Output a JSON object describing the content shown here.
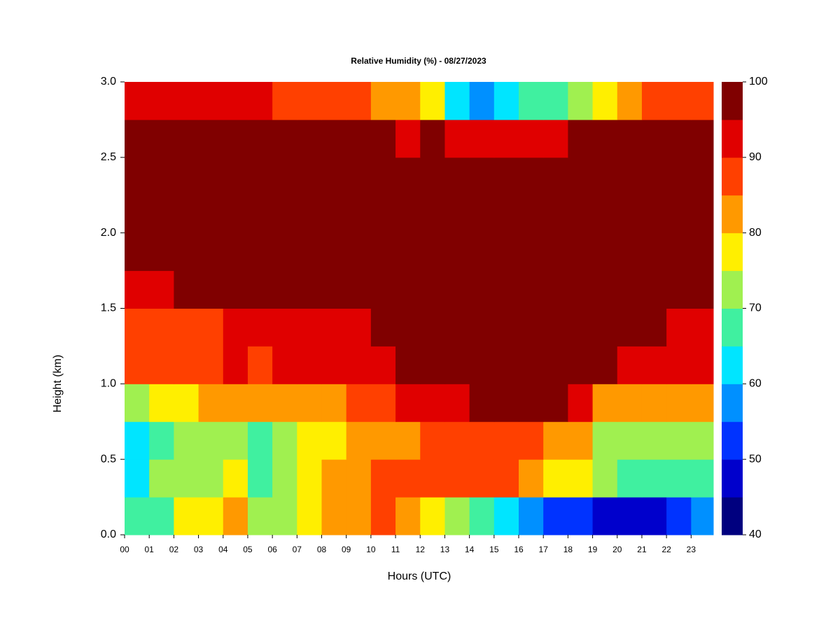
{
  "chart_data": {
    "type": "heatmap",
    "title": "Relative Humidity (%) - 08/27/2023",
    "xlabel": "Hours (UTC)",
    "ylabel": "Height (km)",
    "xlim": [
      0,
      23.9
    ],
    "ylim": [
      0,
      3
    ],
    "x": [
      0,
      1,
      2,
      3,
      4,
      5,
      6,
      7,
      8,
      9,
      10,
      11,
      12,
      13,
      14,
      15,
      16,
      17,
      18,
      19,
      20,
      21,
      22,
      23
    ],
    "y": [
      0,
      0.25,
      0.5,
      0.75,
      1,
      1.25,
      1.5,
      1.75,
      2,
      2.25,
      2.5,
      2.75
    ],
    "values": [
      [
        68,
        68,
        75,
        76,
        82,
        70,
        72,
        77,
        82,
        83,
        86,
        80,
        75,
        70,
        65,
        60,
        55,
        50,
        50,
        48,
        45,
        47,
        50,
        58
      ],
      [
        62,
        70,
        73,
        72,
        78,
        68,
        70,
        75,
        80,
        83,
        86,
        85,
        86,
        87,
        87,
        86,
        83,
        78,
        78,
        70,
        67,
        65,
        65,
        68
      ],
      [
        63,
        68,
        72,
        72,
        74,
        68,
        72,
        76,
        78,
        80,
        82,
        82,
        85,
        88,
        88,
        85,
        85,
        83,
        83,
        74,
        72,
        70,
        72,
        74
      ],
      [
        72,
        75,
        78,
        80,
        84,
        80,
        83,
        82,
        84,
        86,
        88,
        90,
        92,
        94,
        96,
        97,
        97,
        95,
        92,
        84,
        82,
        80,
        80,
        82
      ],
      [
        85,
        86,
        87,
        88,
        92,
        88,
        90,
        90,
        90,
        91,
        93,
        95,
        97,
        97,
        97,
        97,
        97,
        97,
        97,
        95,
        93,
        92,
        90,
        90
      ],
      [
        88,
        87,
        87,
        88,
        93,
        92,
        93,
        93,
        93,
        94,
        95,
        96,
        97,
        97,
        97,
        97,
        97,
        97,
        97,
        97,
        96,
        95,
        93,
        93
      ],
      [
        93,
        94,
        95,
        96,
        97,
        95,
        95,
        96,
        97,
        97,
        97,
        97,
        97,
        97,
        97,
        97,
        97,
        97,
        97,
        97,
        97,
        97,
        97,
        97
      ],
      [
        97,
        97,
        97,
        97,
        97,
        97,
        97,
        97,
        97,
        97,
        97,
        97,
        97,
        97,
        97,
        97,
        97,
        97,
        97,
        97,
        97,
        97,
        97,
        97
      ],
      [
        97,
        97,
        97,
        97,
        97,
        97,
        97,
        97,
        97,
        97,
        97,
        97,
        97,
        97,
        97,
        97,
        97,
        97,
        97,
        97,
        97,
        97,
        97,
        97
      ],
      [
        97,
        97,
        97,
        97,
        97,
        97,
        97,
        97,
        97,
        97,
        97,
        97,
        97,
        97,
        97,
        97,
        97,
        97,
        97,
        97,
        97,
        97,
        97,
        97
      ],
      [
        97,
        97,
        97,
        97,
        97,
        97,
        97,
        97,
        97,
        97,
        95,
        94,
        96,
        93,
        92,
        93,
        93,
        94,
        95,
        96,
        96,
        96,
        97,
        97
      ],
      [
        92,
        90,
        90,
        92,
        93,
        92,
        88,
        88,
        87,
        85,
        80,
        83,
        78,
        62,
        55,
        62,
        68,
        68,
        72,
        78,
        82,
        85,
        88,
        88
      ]
    ],
    "levels": [
      40,
      45,
      50,
      55,
      60,
      65,
      70,
      75,
      80,
      85,
      90,
      95,
      100
    ],
    "colors": [
      "#00007f",
      "#0000cc",
      "#0033ff",
      "#0090ff",
      "#00e5ff",
      "#40f0a0",
      "#a0f050",
      "#ffef00",
      "#ff9900",
      "#ff4000",
      "#e00000",
      "#800000"
    ],
    "xticks": [
      {
        "value": 0,
        "label": "00"
      },
      {
        "value": 1,
        "label": "01"
      },
      {
        "value": 2,
        "label": "02"
      },
      {
        "value": 3,
        "label": "03"
      },
      {
        "value": 4,
        "label": "04"
      },
      {
        "value": 5,
        "label": "05"
      },
      {
        "value": 6,
        "label": "06"
      },
      {
        "value": 7,
        "label": "07"
      },
      {
        "value": 8,
        "label": "08"
      },
      {
        "value": 9,
        "label": "09"
      },
      10,
      11,
      12,
      13,
      14,
      15,
      16,
      17,
      18,
      19,
      20,
      21,
      22,
      23
    ],
    "yticks": [
      {
        "value": 0,
        "label": "0.0"
      },
      {
        "value": 0.5,
        "label": "0.5"
      },
      {
        "value": 1,
        "label": "1.0"
      },
      {
        "value": 1.5,
        "label": "1.5"
      },
      {
        "value": 2,
        "label": "2.0"
      },
      {
        "value": 2.5,
        "label": "2.5"
      },
      {
        "value": 3,
        "label": "3.0"
      }
    ],
    "colorbar_ticks": [
      40,
      50,
      60,
      70,
      80,
      90,
      100
    ]
  }
}
